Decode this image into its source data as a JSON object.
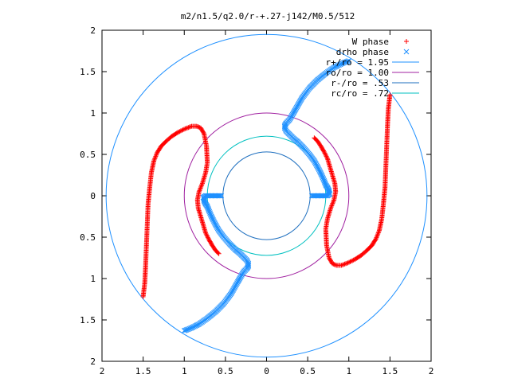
{
  "chart_data": {
    "type": "scatter",
    "title": "m2/n1.5/q2.0/r-+.27-j142/M0.5/512",
    "xlabel": "",
    "ylabel": "",
    "xlim": [
      -2,
      2
    ],
    "ylim": [
      -2,
      2
    ],
    "grid": false,
    "legend_position": "top-right",
    "x_tick_labels": [
      "2",
      "1.5",
      "1",
      "0.5",
      "0",
      "0.5",
      "1",
      "1.5",
      "2"
    ],
    "y_tick_labels": [
      "2",
      "1.5",
      "1",
      "0.5",
      "0",
      "0.5",
      "1",
      "1.5",
      "2"
    ],
    "tick_values": [
      -2,
      -1.5,
      -1,
      -0.5,
      0,
      0.5,
      1,
      1.5,
      2
    ],
    "series": [
      {
        "name": "W phase",
        "marker": "plus",
        "color": "#ff0000",
        "x": [
          -1.5,
          -1.48,
          -1.47,
          -1.46,
          -1.45,
          -1.44,
          -1.42,
          -1.4,
          -1.37,
          -1.33,
          -1.28,
          -1.22,
          -1.15,
          -1.07,
          -0.99,
          -0.91,
          -0.85,
          -0.8,
          -0.76,
          -0.73,
          -0.72,
          -0.74,
          -0.78,
          -0.82,
          -0.84,
          -0.83,
          -0.8,
          -0.77,
          -0.74,
          -0.7,
          -0.66,
          -0.62,
          -0.58,
          1.5,
          1.48,
          1.47,
          1.46,
          1.45,
          1.44,
          1.42,
          1.4,
          1.37,
          1.33,
          1.28,
          1.22,
          1.15,
          1.07,
          0.99,
          0.91,
          0.85,
          0.8,
          0.76,
          0.73,
          0.72,
          0.74,
          0.78,
          0.82,
          0.84,
          0.83,
          0.8,
          0.77,
          0.74,
          0.7,
          0.66,
          0.62,
          0.58
        ],
        "y": [
          -1.22,
          -1.05,
          -0.85,
          -0.6,
          -0.35,
          -0.1,
          0.1,
          0.28,
          0.42,
          0.52,
          0.6,
          0.66,
          0.72,
          0.77,
          0.81,
          0.84,
          0.84,
          0.82,
          0.75,
          0.6,
          0.4,
          0.28,
          0.15,
          0.05,
          -0.05,
          -0.15,
          -0.25,
          -0.35,
          -0.45,
          -0.53,
          -0.6,
          -0.66,
          -0.7,
          1.22,
          1.05,
          0.85,
          0.6,
          0.35,
          0.1,
          -0.1,
          -0.28,
          -0.42,
          -0.52,
          -0.6,
          -0.66,
          -0.72,
          -0.77,
          -0.81,
          -0.84,
          -0.84,
          -0.82,
          -0.75,
          -0.6,
          -0.4,
          -0.28,
          -0.15,
          -0.05,
          0.05,
          0.15,
          0.25,
          0.35,
          0.45,
          0.53,
          0.6,
          0.66,
          0.7
        ]
      },
      {
        "name": "drho phase",
        "marker": "cross",
        "color": "#1e90ff",
        "x": [
          -1.0,
          -0.92,
          -0.82,
          -0.72,
          -0.62,
          -0.52,
          -0.43,
          -0.35,
          -0.28,
          -0.24,
          -0.22,
          -0.22,
          -0.24,
          -0.28,
          -0.32,
          -0.38,
          -0.45,
          -0.52,
          -0.58,
          -0.63,
          -0.67,
          -0.7,
          -0.72,
          -0.74,
          -0.75,
          -0.76,
          -0.76,
          -0.77,
          -0.74,
          -0.7,
          -0.65,
          -0.6,
          -0.55,
          1.0,
          0.92,
          0.82,
          0.72,
          0.62,
          0.52,
          0.43,
          0.35,
          0.28,
          0.24,
          0.22,
          0.22,
          0.24,
          0.28,
          0.32,
          0.38,
          0.45,
          0.52,
          0.58,
          0.63,
          0.67,
          0.7,
          0.72,
          0.74,
          0.75,
          0.76,
          0.76,
          0.77,
          0.74,
          0.7,
          0.65,
          0.6,
          0.55
        ],
        "y": [
          -1.63,
          -1.6,
          -1.55,
          -1.48,
          -1.4,
          -1.3,
          -1.18,
          -1.04,
          -0.92,
          -0.88,
          -0.85,
          -0.82,
          -0.78,
          -0.74,
          -0.7,
          -0.65,
          -0.58,
          -0.5,
          -0.42,
          -0.33,
          -0.25,
          -0.18,
          -0.13,
          -0.1,
          -0.08,
          -0.06,
          -0.04,
          -0.02,
          0.0,
          0.0,
          0.0,
          0.0,
          0.0,
          1.63,
          1.6,
          1.55,
          1.48,
          1.4,
          1.3,
          1.18,
          1.04,
          0.92,
          0.88,
          0.85,
          0.82,
          0.78,
          0.74,
          0.7,
          0.65,
          0.58,
          0.5,
          0.42,
          0.33,
          0.25,
          0.18,
          0.13,
          0.1,
          0.08,
          0.06,
          0.04,
          0.02,
          0.0,
          0.0,
          0.0,
          0.0,
          0.0
        ]
      },
      {
        "name": "r+/ro = 1.95",
        "type": "circle",
        "radius": 1.95,
        "color": "#1e90ff"
      },
      {
        "name": "ro/ro = 1.00",
        "type": "circle",
        "radius": 1.0,
        "color": "#a020a0"
      },
      {
        "name": "r-/ro = .53",
        "type": "circle",
        "radius": 0.53,
        "color": "#1e6fbf"
      },
      {
        "name": "rc/ro = .72",
        "type": "circle",
        "radius": 0.72,
        "color": "#00c0c0"
      }
    ]
  }
}
